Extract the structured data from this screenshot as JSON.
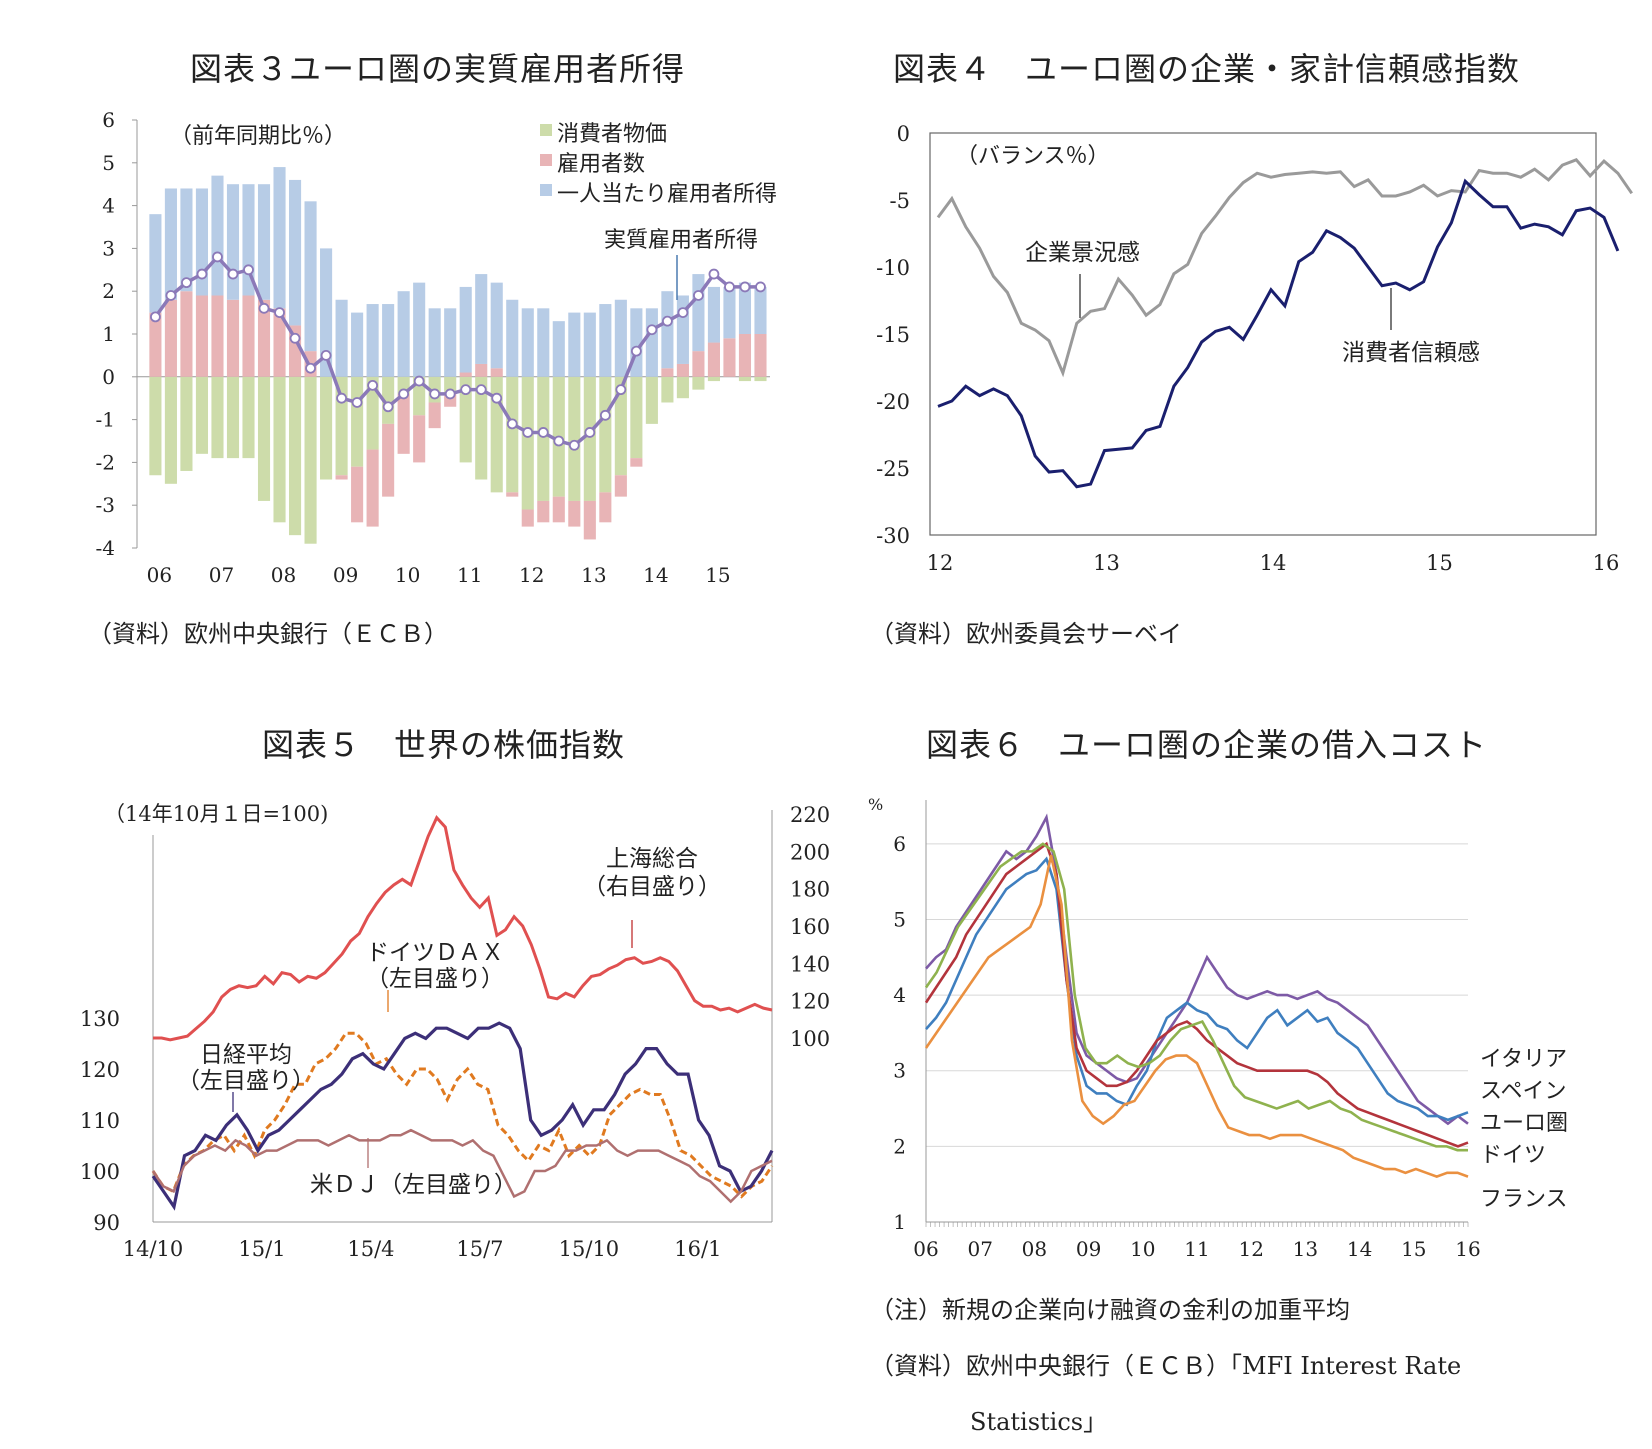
{
  "charts": [
    {
      "title": "図表３ユーロ圏の実質雇用者所得",
      "source": "（資料）欧州中央銀行（ＥＣＢ）",
      "unit_note": "（前年同期比％）",
      "callout": "実質雇用者所得",
      "legend": [
        {
          "label": "消費者物価",
          "color": "#cddcaa"
        },
        {
          "label": "雇用者数",
          "color": "#e8b4b6"
        },
        {
          "label": "一人当たり雇用者所得",
          "color": "#b7cce6"
        }
      ],
      "yticks": [
        "6",
        "5",
        "4",
        "3",
        "2",
        "1",
        "0",
        "-1",
        "-2",
        "-3",
        "-4"
      ],
      "xticks": [
        "06",
        "07",
        "08",
        "09",
        "10",
        "11",
        "12",
        "13",
        "14",
        "15"
      ]
    },
    {
      "title": "図表４　ユーロ圏の企業・家計信頼感指数",
      "source": "（資料）欧州委員会サーベイ",
      "unit_note": "（バランス％）",
      "callouts": [
        "企業景況感",
        "消費者信頼感"
      ],
      "yticks": [
        "0",
        "-5",
        "-10",
        "-15",
        "-20",
        "-25",
        "-30"
      ],
      "xticks": [
        "12",
        "13",
        "14",
        "15",
        "16"
      ]
    },
    {
      "title": "図表５　世界の株価指数",
      "unit_note": "（14年10月１日=100)",
      "callouts": {
        "shanghai": [
          "上海総合",
          "（右目盛り）"
        ],
        "dax": [
          "ドイツＤＡＸ",
          "（左目盛り）"
        ],
        "nikkei": [
          "日経平均",
          "（左目盛り）"
        ],
        "dj": "米ＤＪ（左目盛り）"
      },
      "yticks_left": [
        "130",
        "120",
        "110",
        "100",
        "90"
      ],
      "yticks_right": [
        "220",
        "200",
        "180",
        "160",
        "140",
        "120",
        "100"
      ],
      "xticks": [
        "14/10",
        "15/1",
        "15/4",
        "15/7",
        "15/10",
        "16/1"
      ]
    },
    {
      "title": "図表６　ユーロ圏の企業の借入コスト",
      "unit": "%",
      "series_labels": [
        "イタリア",
        "スペイン",
        "ユーロ圏",
        "ドイツ",
        "フランス"
      ],
      "yticks": [
        "6",
        "5",
        "4",
        "3",
        "2",
        "1"
      ],
      "xticks": [
        "06",
        "07",
        "08",
        "09",
        "10",
        "11",
        "12",
        "13",
        "14",
        "15",
        "16"
      ],
      "note": "（注）新規の企業向け融資の金利の加重平均",
      "source_line1": "（資料）欧州中央銀行（ＥＣＢ）「MFI Interest Rate",
      "source_line2": "Statistics」"
    }
  ],
  "chart_data": [
    {
      "type": "bar",
      "stacked": true,
      "x": [
        2006.0,
        2006.25,
        2006.5,
        2006.75,
        2007.0,
        2007.25,
        2007.5,
        2007.75,
        2008.0,
        2008.25,
        2008.5,
        2008.75,
        2009.0,
        2009.25,
        2009.5,
        2009.75,
        2010.0,
        2010.25,
        2010.5,
        2010.75,
        2011.0,
        2011.25,
        2011.5,
        2011.75,
        2012.0,
        2012.25,
        2012.5,
        2012.75,
        2013.0,
        2013.25,
        2013.5,
        2013.75,
        2014.0,
        2014.25,
        2014.5,
        2014.75,
        2015.0,
        2015.25,
        2015.5,
        2015.75
      ],
      "series": [
        {
          "name": "消費者物価",
          "values": [
            -2.3,
            -2.5,
            -2.2,
            -1.8,
            -1.9,
            -1.9,
            -1.9,
            -2.9,
            -3.4,
            -3.7,
            -3.9,
            -2.4,
            -2.3,
            -2.1,
            -1.7,
            -1.1,
            -0.4,
            -0.9,
            -0.6,
            -0.4,
            -2.0,
            -2.4,
            -2.7,
            -2.7,
            -3.1,
            -2.9,
            -2.8,
            -2.9,
            -2.9,
            -2.7,
            -2.3,
            -1.9,
            -1.1,
            -0.6,
            -0.5,
            -0.3,
            -0.1,
            0.0,
            -0.1,
            -0.1
          ]
        },
        {
          "name": "雇用者数",
          "values": [
            1.5,
            1.8,
            2.0,
            1.9,
            1.9,
            1.8,
            1.9,
            1.8,
            1.6,
            1.2,
            0.6,
            0.0,
            -0.1,
            -1.3,
            -1.8,
            -1.7,
            -1.4,
            -1.1,
            -0.6,
            -0.3,
            0.1,
            0.3,
            0.2,
            -0.1,
            -0.4,
            -0.5,
            -0.6,
            -0.6,
            -0.9,
            -0.7,
            -0.5,
            -0.2,
            0.0,
            0.2,
            0.3,
            0.6,
            0.8,
            0.9,
            1.0,
            1.0
          ]
        },
        {
          "name": "一人当たり雇用者所得",
          "values": [
            2.3,
            2.6,
            2.4,
            2.5,
            2.8,
            2.7,
            2.6,
            2.7,
            3.3,
            3.4,
            3.5,
            3.0,
            1.8,
            1.5,
            1.7,
            1.7,
            2.0,
            2.2,
            1.6,
            1.6,
            2.0,
            2.1,
            2.0,
            1.8,
            1.6,
            1.6,
            1.3,
            1.5,
            1.5,
            1.7,
            1.8,
            1.6,
            1.6,
            1.8,
            1.6,
            1.8,
            1.3,
            1.2,
            1.2,
            1.1
          ]
        },
        {
          "name": "実質雇用者所得",
          "type": "line",
          "values": [
            1.4,
            1.9,
            2.2,
            2.4,
            2.8,
            2.4,
            2.5,
            1.6,
            1.5,
            0.9,
            0.2,
            0.5,
            -0.5,
            -0.6,
            -0.2,
            -0.7,
            -0.4,
            -0.1,
            -0.4,
            -0.4,
            -0.3,
            -0.3,
            -0.5,
            -1.1,
            -1.3,
            -1.3,
            -1.5,
            -1.6,
            -1.3,
            -0.9,
            -0.3,
            0.6,
            1.1,
            1.3,
            1.5,
            1.9,
            2.4,
            2.1,
            2.1,
            2.1
          ]
        }
      ],
      "xlim": [
        2005.8,
        2016.0
      ],
      "ylim": [
        -4,
        6
      ]
    },
    {
      "type": "line",
      "x_start": 2012.0,
      "x_step": 0.0833333,
      "series": [
        {
          "name": "企業景況感",
          "values": [
            -6.3,
            -4.9,
            -7.0,
            -8.6,
            -10.7,
            -11.9,
            -14.2,
            -14.7,
            -15.5,
            -17.9,
            -14.2,
            -13.3,
            -13.1,
            -10.9,
            -12.1,
            -13.6,
            -12.8,
            -10.5,
            -9.8,
            -7.5,
            -6.2,
            -4.8,
            -3.7,
            -3.0,
            -3.3,
            -3.1,
            -3.0,
            -2.9,
            -3.0,
            -2.9,
            -4.0,
            -3.5,
            -4.7,
            -4.7,
            -4.4,
            -3.9,
            -4.7,
            -4.3,
            -4.4,
            -2.8,
            -3.0,
            -3.0,
            -3.3,
            -2.7,
            -3.5,
            -2.4,
            -2.0,
            -3.2,
            -2.1,
            -3.0,
            -4.5
          ]
        },
        {
          "name": "消費者信頼感",
          "values": [
            -20.4,
            -20.0,
            -18.9,
            -19.6,
            -19.1,
            -19.6,
            -21.1,
            -24.1,
            -25.3,
            -25.2,
            -26.4,
            -26.2,
            -23.7,
            -23.6,
            -23.5,
            -22.2,
            -21.9,
            -18.9,
            -17.5,
            -15.6,
            -14.8,
            -14.5,
            -15.4,
            -13.6,
            -11.7,
            -12.9,
            -9.6,
            -8.9,
            -7.3,
            -7.8,
            -8.6,
            -10.0,
            -11.4,
            -11.2,
            -11.7,
            -11.1,
            -8.5,
            -6.7,
            -3.6,
            -4.6,
            -5.5,
            -5.5,
            -7.1,
            -6.8,
            -7.0,
            -7.6,
            -5.8,
            -5.6,
            -6.3,
            -8.8
          ]
        }
      ],
      "xlim": [
        2012.0,
        2016.0
      ],
      "ylim": [
        -30,
        0
      ]
    },
    {
      "type": "line",
      "x_start": 2014.75,
      "x_step": 0.0416667,
      "series": [
        {
          "name": "上海総合",
          "axis": "right",
          "values": [
            100,
            100,
            99,
            100,
            101,
            105,
            109,
            114,
            122,
            126,
            128,
            127,
            128,
            133,
            129,
            135,
            134,
            130,
            133,
            132,
            135,
            140,
            145,
            152,
            156,
            165,
            172,
            178,
            182,
            185,
            182,
            195,
            208,
            218,
            213,
            190,
            182,
            175,
            170,
            175,
            155,
            158,
            165,
            160,
            150,
            137,
            122,
            121,
            124,
            122,
            128,
            133,
            134,
            137,
            139,
            142,
            143,
            140,
            141,
            143,
            141,
            136,
            128,
            120,
            117,
            117,
            115,
            116,
            114,
            116,
            118,
            116,
            115
          ]
        },
        {
          "name": "ドイツＤＡＸ",
          "axis": "left",
          "values": [
            100,
            97,
            96,
            101,
            103,
            104,
            106,
            107,
            104,
            107,
            103,
            108,
            110,
            113,
            117,
            117,
            121,
            122,
            124,
            127,
            127,
            125,
            121,
            122,
            119,
            117,
            120,
            120,
            118,
            114,
            118,
            120,
            117,
            116,
            109,
            107,
            104,
            102,
            105,
            104,
            108,
            103,
            105,
            103,
            105,
            111,
            113,
            115,
            116,
            115,
            115,
            110,
            104,
            103,
            101,
            99,
            98,
            97,
            95,
            97,
            98,
            101
          ]
        },
        {
          "name": "日経平均",
          "axis": "left",
          "values": [
            99,
            96,
            93,
            103,
            104,
            107,
            106,
            109,
            111,
            108,
            104,
            107,
            108,
            110,
            112,
            114,
            116,
            117,
            119,
            122,
            123,
            121,
            120,
            123,
            126,
            127,
            126,
            128,
            128,
            127,
            126,
            128,
            128,
            129,
            128,
            124,
            110,
            107,
            108,
            110,
            113,
            109,
            112,
            112,
            115,
            119,
            121,
            124,
            124,
            121,
            119,
            119,
            110,
            107,
            101,
            100,
            96,
            97,
            100,
            104
          ]
        },
        {
          "name": "米ＤＪ",
          "axis": "left",
          "values": [
            100,
            97,
            96,
            101,
            103,
            104,
            105,
            104,
            106,
            105,
            103,
            104,
            104,
            105,
            106,
            106,
            106,
            105,
            106,
            107,
            106,
            106,
            106,
            107,
            107,
            108,
            107,
            106,
            106,
            106,
            105,
            106,
            104,
            103,
            99,
            95,
            96,
            100,
            100,
            101,
            104,
            104,
            105,
            105,
            106,
            104,
            103,
            104,
            104,
            104,
            103,
            102,
            101,
            99,
            98,
            96,
            94,
            96,
            100,
            101,
            102
          ]
        }
      ],
      "xlim": [
        2014.75,
        2016.17
      ],
      "ylim_left": [
        90,
        135
      ],
      "ylim_right": [
        100,
        220
      ]
    },
    {
      "type": "line",
      "x_start": 2006.0,
      "x_step": 0.0833333,
      "series": [
        {
          "name": "イタリア",
          "values": [
            4.35,
            4.5,
            4.6,
            4.9,
            5.1,
            5.3,
            5.5,
            5.7,
            5.9,
            5.8,
            5.9,
            6.1,
            6.35,
            5.6,
            4.5,
            3.5,
            3.2,
            3.1,
            3.0,
            2.9,
            2.85,
            2.9,
            3.1,
            3.3,
            3.5,
            3.7,
            3.9,
            4.2,
            4.5,
            4.3,
            4.1,
            4.0,
            3.95,
            4.0,
            4.05,
            4.0,
            4.0,
            3.95,
            4.0,
            4.05,
            3.95,
            3.9,
            3.8,
            3.7,
            3.6,
            3.4,
            3.2,
            3.0,
            2.8,
            2.6,
            2.5,
            2.4,
            2.3,
            2.4,
            2.3
          ]
        },
        {
          "name": "スペイン",
          "values": [
            3.55,
            3.7,
            3.9,
            4.2,
            4.5,
            4.8,
            5.0,
            5.2,
            5.4,
            5.5,
            5.6,
            5.65,
            5.8,
            5.4,
            4.2,
            3.2,
            2.8,
            2.7,
            2.7,
            2.6,
            2.55,
            2.8,
            3.0,
            3.4,
            3.7,
            3.8,
            3.9,
            3.8,
            3.75,
            3.6,
            3.55,
            3.4,
            3.3,
            3.5,
            3.7,
            3.8,
            3.6,
            3.7,
            3.8,
            3.65,
            3.7,
            3.5,
            3.4,
            3.3,
            3.1,
            2.9,
            2.7,
            2.6,
            2.55,
            2.5,
            2.4,
            2.4,
            2.35,
            2.4,
            2.45
          ]
        },
        {
          "name": "ユーロ圏",
          "values": [
            3.9,
            4.1,
            4.3,
            4.5,
            4.8,
            5.0,
            5.2,
            5.4,
            5.6,
            5.7,
            5.8,
            5.9,
            6.0,
            5.6,
            4.2,
            3.3,
            3.0,
            2.9,
            2.8,
            2.8,
            2.85,
            3.0,
            3.2,
            3.4,
            3.5,
            3.6,
            3.65,
            3.55,
            3.4,
            3.3,
            3.2,
            3.1,
            3.05,
            3.0,
            3.0,
            3.0,
            3.0,
            3.0,
            3.0,
            2.95,
            2.85,
            2.7,
            2.6,
            2.5,
            2.45,
            2.4,
            2.35,
            2.3,
            2.25,
            2.2,
            2.15,
            2.1,
            2.05,
            2.0,
            2.05
          ]
        },
        {
          "name": "ドイツ",
          "values": [
            4.1,
            4.3,
            4.6,
            4.9,
            5.1,
            5.3,
            5.5,
            5.7,
            5.8,
            5.9,
            5.9,
            6.0,
            5.9,
            5.4,
            4.0,
            3.3,
            3.1,
            3.1,
            3.2,
            3.1,
            3.05,
            3.1,
            3.2,
            3.4,
            3.55,
            3.6,
            3.65,
            3.4,
            3.1,
            2.8,
            2.65,
            2.6,
            2.55,
            2.5,
            2.55,
            2.6,
            2.5,
            2.55,
            2.6,
            2.5,
            2.45,
            2.35,
            2.3,
            2.25,
            2.2,
            2.15,
            2.1,
            2.05,
            2.0,
            2.0,
            1.95,
            1.95
          ]
        },
        {
          "name": "フランス",
          "values": [
            3.3,
            3.5,
            3.7,
            3.9,
            4.1,
            4.3,
            4.5,
            4.6,
            4.7,
            4.8,
            4.9,
            5.2,
            5.85,
            5.2,
            3.4,
            2.6,
            2.4,
            2.3,
            2.4,
            2.55,
            2.6,
            2.8,
            3.0,
            3.15,
            3.2,
            3.2,
            3.1,
            2.8,
            2.5,
            2.25,
            2.2,
            2.15,
            2.15,
            2.1,
            2.15,
            2.15,
            2.15,
            2.1,
            2.05,
            2.0,
            1.95,
            1.85,
            1.8,
            1.75,
            1.7,
            1.7,
            1.65,
            1.7,
            1.65,
            1.6,
            1.65,
            1.65,
            1.6
          ]
        }
      ],
      "xlim": [
        2006.0,
        2016.0
      ],
      "ylim": [
        1,
        6.5
      ]
    }
  ]
}
